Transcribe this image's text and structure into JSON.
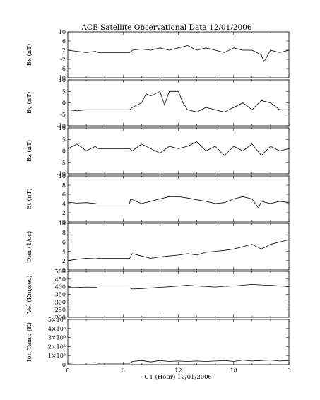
{
  "title": "ACE Satellite Observational Data   12/01/2006",
  "xlabel": "UT (Hour)  12/01/2006",
  "x_tick_labels": [
    "0",
    "6",
    "12",
    "18",
    "0"
  ],
  "chart_data": [
    {
      "type": "line",
      "ylabel": "Bx (nT)",
      "ylim": [
        -10,
        10
      ],
      "yticks": [
        -10,
        -6,
        -2,
        2,
        6,
        10
      ],
      "ytick_labels": [
        "-10",
        "-6",
        "-2",
        "2",
        "6",
        "10"
      ],
      "series": [
        {
          "x": [
            0,
            1,
            2,
            3,
            3.3,
            6.7,
            7,
            8,
            9,
            10,
            11,
            12,
            13,
            14,
            15,
            16,
            17,
            18,
            19,
            20,
            21,
            21.3,
            22,
            23,
            24
          ],
          "values": [
            2,
            1.5,
            1,
            1.5,
            1,
            1,
            2,
            2.5,
            2,
            3,
            2,
            3,
            4,
            2,
            3,
            2,
            1,
            3,
            2,
            2,
            0,
            -3,
            2,
            1,
            2
          ]
        }
      ]
    },
    {
      "type": "line",
      "ylabel": "By (nT)",
      "ylim": [
        -10,
        10
      ],
      "yticks": [
        -10,
        -5,
        0,
        5,
        10
      ],
      "ytick_labels": [
        "-10",
        "-5",
        "0",
        "5",
        "10"
      ],
      "series": [
        {
          "x": [
            0,
            1,
            2,
            3,
            3.3,
            6.7,
            7,
            8,
            8.5,
            9,
            10,
            10.5,
            11,
            12,
            12.5,
            13,
            14,
            15,
            16,
            17,
            18,
            19,
            20,
            21,
            22,
            23,
            24
          ],
          "values": [
            -3,
            -3.5,
            -3,
            -3,
            -3,
            -3,
            -2,
            0,
            4,
            3,
            5,
            -1,
            5,
            5,
            0,
            -3,
            -4,
            -2,
            -3,
            -4,
            -2,
            0,
            -3,
            1,
            0,
            -3,
            -3
          ]
        }
      ]
    },
    {
      "type": "line",
      "ylabel": "Bz (nT)",
      "ylim": [
        -10,
        10
      ],
      "yticks": [
        -10,
        -5,
        0,
        5,
        10
      ],
      "ytick_labels": [
        "-10",
        "-5",
        "0",
        "5",
        "10"
      ],
      "series": [
        {
          "x": [
            0,
            1,
            2,
            3,
            3.3,
            6.7,
            7,
            8,
            9,
            10,
            11,
            12,
            13,
            14,
            15,
            16,
            17,
            18,
            19,
            20,
            21,
            22,
            23,
            24
          ],
          "values": [
            1,
            3,
            0,
            2,
            1,
            1,
            0,
            3,
            1,
            -1,
            2,
            1,
            2,
            4,
            0,
            2,
            -2,
            2,
            0,
            3,
            -2,
            2,
            0,
            1
          ]
        }
      ]
    },
    {
      "type": "line",
      "ylabel": "Bt (nT)",
      "ylim": [
        0,
        10
      ],
      "yticks": [
        0,
        2,
        4,
        6,
        8,
        10
      ],
      "ytick_labels": [
        "0",
        "2",
        "4",
        "6",
        "8",
        "10"
      ],
      "series": [
        {
          "x": [
            0,
            1,
            2,
            3,
            3.3,
            6.7,
            6.8,
            8,
            9,
            10,
            11,
            12,
            13,
            14,
            15,
            16,
            17,
            18,
            19,
            20,
            20.7,
            21,
            22,
            23,
            24
          ],
          "values": [
            4.3,
            4.1,
            4.2,
            4.0,
            3.9,
            3.9,
            5.0,
            4.0,
            4.5,
            5.0,
            5.5,
            5.5,
            5.2,
            4.8,
            4.5,
            4.0,
            4.2,
            5.0,
            5.5,
            5.0,
            3.0,
            4.5,
            4.0,
            4.5,
            4.2
          ]
        }
      ]
    },
    {
      "type": "line",
      "ylabel": "Den (1/cc)",
      "ylim": [
        0,
        10
      ],
      "yticks": [
        0,
        2,
        4,
        6,
        8,
        10
      ],
      "ytick_labels": [
        "0",
        "2",
        "4",
        "6",
        "8",
        "10"
      ],
      "series": [
        {
          "x": [
            0,
            1,
            2,
            3,
            3.3,
            6.7,
            7,
            8,
            9,
            10,
            11,
            12,
            13,
            14,
            15,
            16,
            17,
            18,
            19,
            20,
            21,
            22,
            23,
            24
          ],
          "values": [
            2,
            2.3,
            2.5,
            2.4,
            2.5,
            2.5,
            3.5,
            3.0,
            2.5,
            2.8,
            3.0,
            3.2,
            3.5,
            3.2,
            3.8,
            4.0,
            4.2,
            4.5,
            5.0,
            5.5,
            4.5,
            5.5,
            6.0,
            6.5
          ]
        }
      ]
    },
    {
      "type": "line",
      "ylabel": "Vel (Km/sec)",
      "ylim": [
        200,
        500
      ],
      "yticks": [
        200,
        250,
        300,
        350,
        400,
        450,
        500
      ],
      "ytick_labels": [
        "200",
        "250",
        "300",
        "350",
        "400",
        "450",
        "500"
      ],
      "series": [
        {
          "x": [
            0,
            1,
            2,
            3,
            3.3,
            6.7,
            7,
            8,
            9,
            10,
            11,
            12,
            13,
            14,
            15,
            16,
            17,
            18,
            19,
            20,
            21,
            22,
            23,
            24
          ],
          "values": [
            395,
            395,
            398,
            396,
            392,
            392,
            385,
            388,
            392,
            396,
            400,
            405,
            410,
            405,
            402,
            398,
            403,
            405,
            410,
            415,
            412,
            410,
            405,
            402
          ]
        }
      ]
    },
    {
      "type": "line",
      "ylabel": "Ion Temp (K)",
      "ylim": [
        0,
        500000
      ],
      "yticks": [
        0,
        100000,
        200000,
        300000,
        400000,
        500000
      ],
      "ytick_labels": [
        "0",
        "1×10⁵",
        "2×10⁵",
        "3×10⁵",
        "4×10⁵",
        "5×10⁵"
      ],
      "series": [
        {
          "x": [
            0,
            1,
            2,
            3,
            3.3,
            6.7,
            7,
            8,
            9,
            10,
            11,
            12,
            13,
            14,
            15,
            16,
            17,
            18,
            19,
            20,
            21,
            22,
            23,
            24
          ],
          "values": [
            15000,
            20000,
            18000,
            22000,
            16000,
            16000,
            35000,
            45000,
            30000,
            45000,
            35000,
            40000,
            35000,
            40000,
            35000,
            40000,
            45000,
            35000,
            50000,
            40000,
            45000,
            50000,
            40000,
            45000
          ]
        }
      ]
    }
  ]
}
